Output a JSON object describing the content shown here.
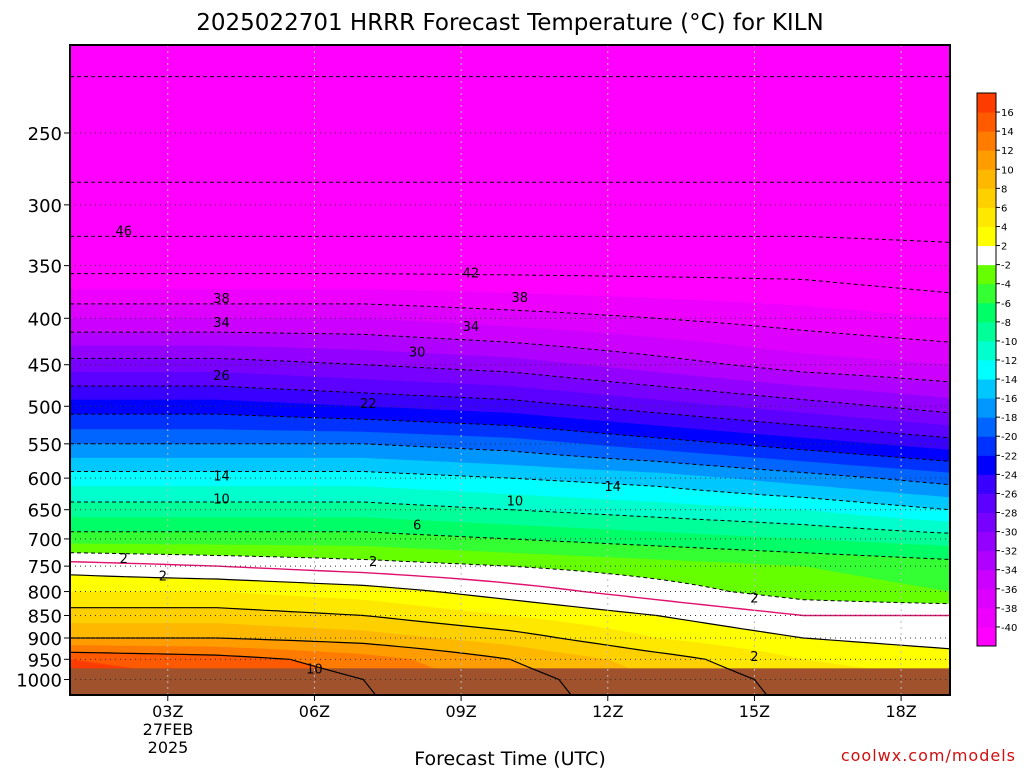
{
  "chart_data": {
    "type": "heatmap",
    "title": "2025022701 HRRR Forecast Temperature (°C) for KILN",
    "xlabel": "Forecast Time (UTC)",
    "ylabel": "",
    "x_range_hours": [
      1,
      19
    ],
    "y_range_hpa": [
      200,
      1040
    ],
    "y_scale": "log-pressure (inverted)",
    "x_ticks": [
      {
        "label": "03Z",
        "hour": 3
      },
      {
        "label": "06Z",
        "hour": 6
      },
      {
        "label": "09Z",
        "hour": 9
      },
      {
        "label": "12Z",
        "hour": 12
      },
      {
        "label": "15Z",
        "hour": 15
      },
      {
        "label": "18Z",
        "hour": 18
      }
    ],
    "date_label": [
      "27FEB",
      "2025"
    ],
    "y_ticks": [
      250,
      300,
      350,
      400,
      450,
      500,
      550,
      600,
      650,
      700,
      750,
      800,
      850,
      900,
      950,
      1000
    ],
    "ground_level_hpa": 972,
    "grid": true,
    "colorbar": {
      "position": "right",
      "levels": [
        -40,
        -38,
        -36,
        -34,
        -32,
        -30,
        -28,
        -26,
        -24,
        -22,
        -20,
        -18,
        -16,
        -14,
        -12,
        -10,
        -8,
        -6,
        -4,
        -2,
        2,
        4,
        6,
        8,
        10,
        12,
        14,
        16
      ],
      "colors": [
        "#ff00ff",
        "#ee00ff",
        "#dd00ff",
        "#cc00ff",
        "#b000ff",
        "#9400ff",
        "#7800ff",
        "#5c00ff",
        "#3a00ff",
        "#0000ff",
        "#0032ff",
        "#0064ff",
        "#0096ff",
        "#00c8ff",
        "#00ffff",
        "#00ffcc",
        "#00ff99",
        "#00ff66",
        "#33ff33",
        "#66ff00",
        "#ffffff",
        "#ffff00",
        "#ffe800",
        "#ffd000",
        "#ffb800",
        "#ff9c00",
        "#ff7c00",
        "#ff5a00",
        "#ff3c00"
      ]
    },
    "temperature_profile": {
      "pressure_hpa": [
        200,
        250,
        300,
        350,
        400,
        450,
        500,
        550,
        600,
        650,
        700,
        750,
        800,
        850,
        900,
        950,
        1000
      ],
      "hours": [
        1,
        4,
        7,
        10,
        13,
        16,
        19
      ],
      "temp_c": [
        [
          -55,
          -55,
          -55,
          -55,
          -55,
          -55,
          -55
        ],
        [
          -52,
          -52,
          -52,
          -52,
          -52,
          -52,
          -52
        ],
        [
          -49,
          -49,
          -49,
          -49,
          -49,
          -49,
          -49
        ],
        [
          -43,
          -43,
          -43,
          -43,
          -43,
          -43,
          -44
        ],
        [
          -36,
          -36,
          -36,
          -37,
          -38,
          -39,
          -40
        ],
        [
          -29,
          -29,
          -30,
          -31,
          -33,
          -35,
          -36
        ],
        [
          -23,
          -23,
          -24,
          -25,
          -27,
          -29,
          -31
        ],
        [
          -18,
          -18,
          -18,
          -19,
          -21,
          -23,
          -25
        ],
        [
          -13,
          -13,
          -13,
          -14,
          -15,
          -17,
          -19
        ],
        [
          -9,
          -9,
          -9,
          -10,
          -11,
          -12,
          -14
        ],
        [
          -5,
          -5,
          -5,
          -6,
          -7,
          -8,
          -9
        ],
        [
          1,
          0,
          -1,
          -2,
          -3,
          -4,
          -5
        ],
        [
          4,
          4,
          3,
          1,
          -1,
          -3,
          -4
        ],
        [
          7,
          7,
          6,
          4,
          2,
          0,
          0
        ],
        [
          10,
          10,
          9,
          7,
          4,
          2,
          1
        ],
        [
          16,
          15,
          13,
          10,
          7,
          4,
          3
        ],
        [
          17,
          16,
          14,
          11,
          8,
          5,
          4
        ]
      ]
    },
    "contour_labels": [
      {
        "text": "46",
        "hour": 2.1,
        "p": 320
      },
      {
        "text": "42",
        "hour": 9.2,
        "p": 356
      },
      {
        "text": "38",
        "hour": 4.1,
        "p": 380
      },
      {
        "text": "38",
        "hour": 10.2,
        "p": 379
      },
      {
        "text": "34",
        "hour": 4.1,
        "p": 404
      },
      {
        "text": "34",
        "hour": 9.2,
        "p": 408
      },
      {
        "text": "30",
        "hour": 8.1,
        "p": 435
      },
      {
        "text": "26",
        "hour": 4.1,
        "p": 462
      },
      {
        "text": "22",
        "hour": 7.1,
        "p": 496
      },
      {
        "text": "14",
        "hour": 4.1,
        "p": 596
      },
      {
        "text": "14",
        "hour": 12.1,
        "p": 612
      },
      {
        "text": "10",
        "hour": 4.1,
        "p": 632
      },
      {
        "text": "10",
        "hour": 10.1,
        "p": 635
      },
      {
        "text": "6",
        "hour": 8.1,
        "p": 675
      },
      {
        "text": "2",
        "hour": 2.1,
        "p": 735
      },
      {
        "text": "2",
        "hour": 7.2,
        "p": 740
      },
      {
        "text": "2",
        "hour": 2.9,
        "p": 768
      },
      {
        "text": "2",
        "hour": 15.0,
        "p": 812
      },
      {
        "text": "2",
        "hour": 15.0,
        "p": 942
      },
      {
        "text": "10",
        "hour": 6.0,
        "p": 972
      }
    ]
  },
  "credit": "coolwx.com/models"
}
